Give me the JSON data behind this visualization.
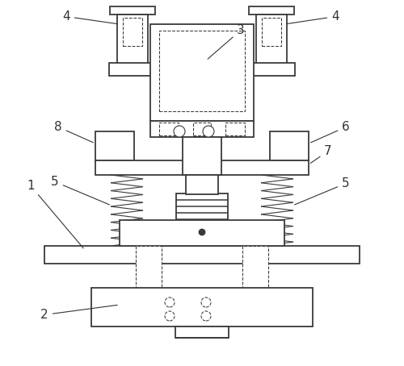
{
  "bg_color": "#ffffff",
  "line_color": "#3a3a3a",
  "lw": 1.3,
  "tlw": 0.8,
  "dlw": 0.75
}
